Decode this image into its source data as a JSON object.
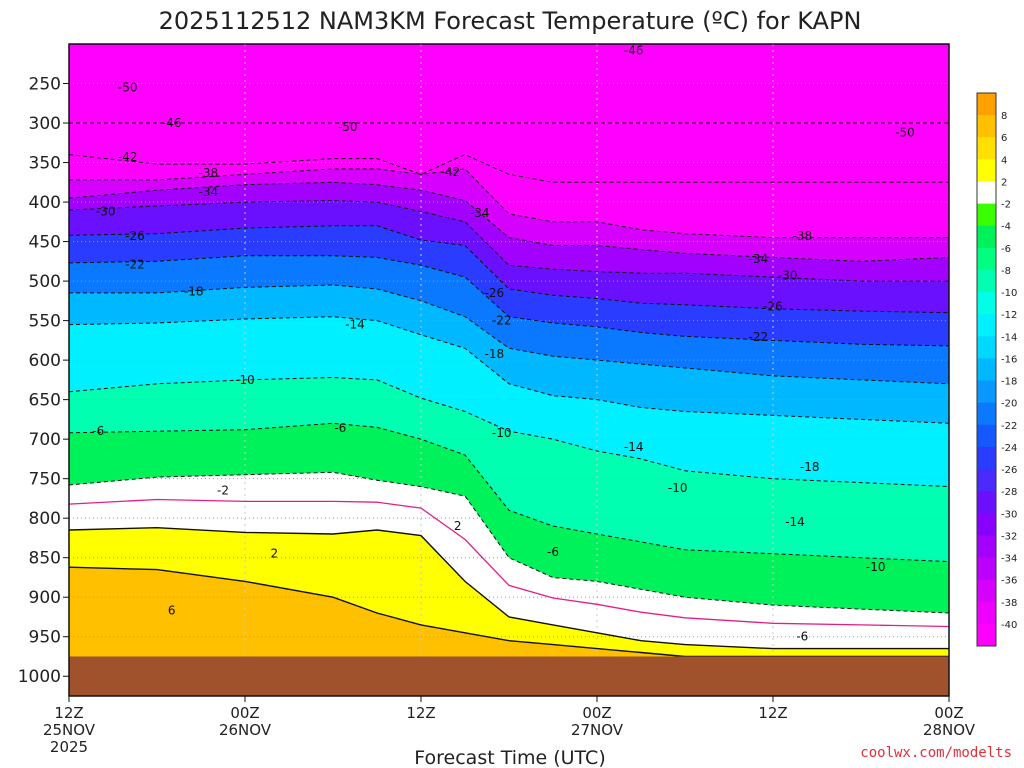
{
  "chart_data": {
    "type": "heatmap",
    "title": "2025112512 NAM3KM Forecast Temperature (ºC) for KAPN",
    "xlabel": "Forecast Time (UTC)",
    "ylabel": "",
    "credit": "coolwx.com/modelts",
    "x_ticks": [
      {
        "hour": 0,
        "line1": "12Z",
        "line2": "25NOV",
        "line3": "2025"
      },
      {
        "hour": 12,
        "line1": "00Z",
        "line2": "26NOV",
        "line3": ""
      },
      {
        "hour": 24,
        "line1": "12Z",
        "line2": "",
        "line3": ""
      },
      {
        "hour": 36,
        "line1": "00Z",
        "line2": "27NOV",
        "line3": ""
      },
      {
        "hour": 48,
        "line1": "12Z",
        "line2": "",
        "line3": ""
      },
      {
        "hour": 60,
        "line1": "00Z",
        "line2": "28NOV",
        "line3": ""
      }
    ],
    "x_range_hours": [
      0,
      60
    ],
    "y_ticks": [
      250,
      300,
      350,
      400,
      450,
      500,
      550,
      600,
      650,
      700,
      750,
      800,
      850,
      900,
      950,
      1000
    ],
    "y_units": "hPa",
    "y_range": [
      200,
      1025
    ],
    "surface_pressure_hpa": 975,
    "colorbar": {
      "levels": [
        -40,
        -38,
        -36,
        -34,
        -32,
        -30,
        -28,
        -26,
        -24,
        -22,
        -20,
        -18,
        -16,
        -14,
        -12,
        -10,
        -8,
        -6,
        -4,
        -2,
        2,
        4,
        6,
        8
      ],
      "colors": [
        "#ff00ff",
        "#ee00ff",
        "#d600ff",
        "#bc00ff",
        "#a200ff",
        "#8800ff",
        "#6a10ff",
        "#4a2aff",
        "#2a3cff",
        "#1658ff",
        "#0a78ff",
        "#0a98ff",
        "#00b8ff",
        "#00d8ff",
        "#00f0ff",
        "#00ffe6",
        "#00ffb0",
        "#00ff80",
        "#00f25a",
        "#3aff00",
        "#ffffff",
        "#ffff00",
        "#ffe000",
        "#ffc000",
        "#ffa000"
      ]
    },
    "times_hours": [
      0,
      6,
      12,
      18,
      21,
      24,
      27,
      30,
      33,
      36,
      39,
      42,
      48,
      54,
      60
    ],
    "isotherm_pressures_hpa": {
      "-46": [
        300,
        300,
        300,
        300,
        300,
        300,
        300,
        300,
        300,
        300,
        300,
        300,
        300,
        300,
        300
      ],
      "-42": [
        340,
        352,
        352,
        345,
        345,
        365,
        340,
        365,
        375,
        375,
        375,
        375,
        375,
        375,
        375
      ],
      "-38": [
        372,
        372,
        365,
        358,
        358,
        365,
        358,
        415,
        425,
        425,
        435,
        440,
        445,
        445,
        445
      ],
      "-34": [
        395,
        385,
        378,
        375,
        378,
        385,
        398,
        445,
        455,
        455,
        460,
        465,
        470,
        475,
        470
      ],
      "-30": [
        410,
        405,
        400,
        398,
        400,
        412,
        425,
        480,
        485,
        488,
        490,
        490,
        495,
        500,
        500
      ],
      "-26": [
        442,
        440,
        433,
        430,
        430,
        448,
        455,
        510,
        518,
        522,
        528,
        530,
        535,
        538,
        540
      ],
      "-22": [
        477,
        475,
        468,
        468,
        470,
        480,
        495,
        545,
        553,
        558,
        565,
        570,
        575,
        580,
        582
      ],
      "-18": [
        515,
        515,
        508,
        505,
        510,
        525,
        545,
        585,
        595,
        600,
        605,
        610,
        620,
        625,
        630
      ],
      "-14": [
        555,
        553,
        548,
        545,
        550,
        568,
        585,
        630,
        645,
        650,
        660,
        665,
        670,
        675,
        680
      ],
      "-10": [
        640,
        630,
        625,
        622,
        625,
        648,
        665,
        690,
        700,
        715,
        725,
        740,
        750,
        755,
        760
      ],
      "-6": [
        692,
        690,
        688,
        680,
        685,
        700,
        720,
        790,
        810,
        820,
        830,
        840,
        845,
        850,
        855
      ],
      "-2": [
        758,
        748,
        745,
        742,
        752,
        760,
        772,
        850,
        875,
        880,
        890,
        900,
        910,
        915,
        920
      ],
      "2": [
        815,
        812,
        818,
        820,
        815,
        822,
        880,
        925,
        935,
        945,
        955,
        960,
        965,
        965,
        965
      ],
      "6": [
        862,
        865,
        880,
        900,
        920,
        935,
        945,
        955,
        960,
        965,
        970,
        975,
        975,
        975,
        975
      ]
    },
    "contour_labels": [
      {
        "text": "-50",
        "hour": 4,
        "p": 255
      },
      {
        "text": "-46",
        "hour": 7,
        "p": 300
      },
      {
        "text": "-50",
        "hour": 19,
        "p": 305
      },
      {
        "text": "-46",
        "hour": 38.5,
        "p": 208
      },
      {
        "text": "-50",
        "hour": 57,
        "p": 312
      },
      {
        "text": "-42",
        "hour": 4,
        "p": 343
      },
      {
        "text": "-42",
        "hour": 26,
        "p": 362
      },
      {
        "text": "-38",
        "hour": 9.5,
        "p": 363
      },
      {
        "text": "-34",
        "hour": 9.5,
        "p": 387
      },
      {
        "text": "-34",
        "hour": 28,
        "p": 414
      },
      {
        "text": "-38",
        "hour": 50,
        "p": 443
      },
      {
        "text": "-30",
        "hour": 2.5,
        "p": 412
      },
      {
        "text": "-34",
        "hour": 47,
        "p": 472
      },
      {
        "text": "-26",
        "hour": 4.5,
        "p": 443
      },
      {
        "text": "-30",
        "hour": 49,
        "p": 493
      },
      {
        "text": "-22",
        "hour": 4.5,
        "p": 479
      },
      {
        "text": "-26",
        "hour": 29,
        "p": 515
      },
      {
        "text": "-26",
        "hour": 48,
        "p": 532
      },
      {
        "text": "-18",
        "hour": 8.5,
        "p": 513
      },
      {
        "text": "-22",
        "hour": 29.5,
        "p": 550
      },
      {
        "text": "-22",
        "hour": 47,
        "p": 571
      },
      {
        "text": "-14",
        "hour": 19.5,
        "p": 555
      },
      {
        "text": "-18",
        "hour": 29,
        "p": 592
      },
      {
        "text": "-10",
        "hour": 12,
        "p": 625
      },
      {
        "text": "-10",
        "hour": 29.5,
        "p": 692
      },
      {
        "text": "-14",
        "hour": 38.5,
        "p": 710
      },
      {
        "text": "-6",
        "hour": 2,
        "p": 690
      },
      {
        "text": "-6",
        "hour": 18.5,
        "p": 686
      },
      {
        "text": "-10",
        "hour": 41.5,
        "p": 762
      },
      {
        "text": "-18",
        "hour": 50.5,
        "p": 735
      },
      {
        "text": "-2",
        "hour": 10.5,
        "p": 765
      },
      {
        "text": "2",
        "hour": 26.5,
        "p": 810
      },
      {
        "text": "2",
        "hour": 14,
        "p": 845
      },
      {
        "text": "-14",
        "hour": 49.5,
        "p": 805
      },
      {
        "text": "-6",
        "hour": 33,
        "p": 843
      },
      {
        "text": "-10",
        "hour": 55,
        "p": 862
      },
      {
        "text": "6",
        "hour": 7,
        "p": 917
      },
      {
        "text": "-6",
        "hour": 50,
        "p": 950
      }
    ]
  }
}
